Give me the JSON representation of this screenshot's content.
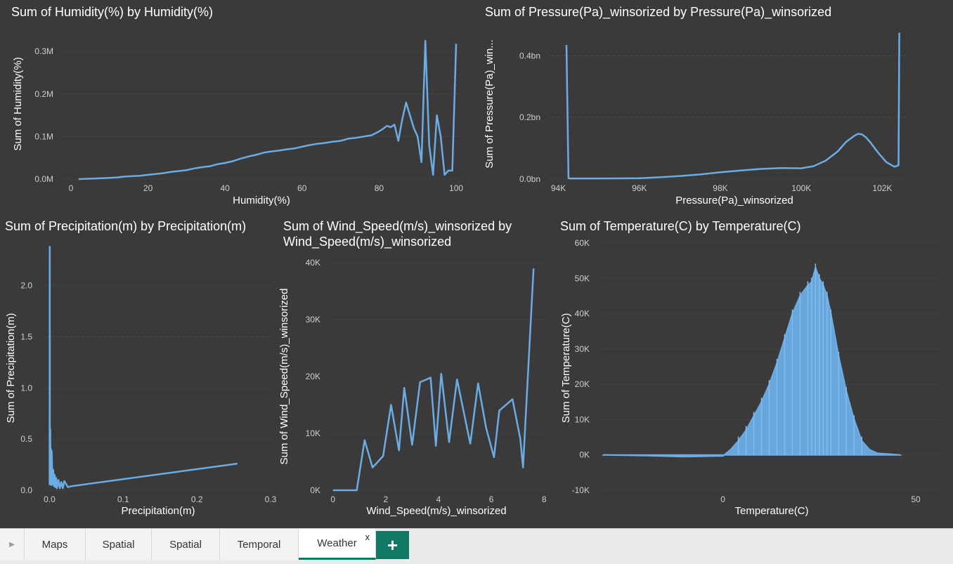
{
  "colors": {
    "background": "#3a3a3a",
    "line": "#6cace4",
    "text": "#ffffff",
    "tick": "#cfcfcf",
    "grid": "#5a5a5a",
    "tab_accent": "#117865"
  },
  "tabs": [
    {
      "label": "Maps"
    },
    {
      "label": "Spatial"
    },
    {
      "label": "Spatial"
    },
    {
      "label": "Temporal"
    },
    {
      "label": "Weather",
      "close": "x"
    }
  ],
  "add_page": "+",
  "scroll_icon": "triangle-right-icon",
  "chart_data": [
    {
      "type": "line",
      "title": "Sum of Humidity(%) by Humidity(%)",
      "xlabel": "Humidity(%)",
      "ylabel": "Sum of Humidity(%)",
      "xlim": [
        -2,
        102
      ],
      "ylim": [
        0,
        330000
      ],
      "xticks": [
        {
          "v": 0,
          "label": "0"
        },
        {
          "v": 20,
          "label": "20"
        },
        {
          "v": 40,
          "label": "40"
        },
        {
          "v": 60,
          "label": "60"
        },
        {
          "v": 80,
          "label": "80"
        },
        {
          "v": 100,
          "label": "100"
        }
      ],
      "yticks": [
        {
          "v": 0,
          "label": "0.0M"
        },
        {
          "v": 100000,
          "label": "0.1M"
        },
        {
          "v": 200000,
          "label": "0.2M"
        },
        {
          "v": 300000,
          "label": "0.3M"
        }
      ],
      "x": [
        2,
        5,
        8,
        10,
        12,
        14,
        16,
        18,
        20,
        22,
        24,
        26,
        28,
        30,
        32,
        34,
        36,
        38,
        40,
        42,
        44,
        46,
        48,
        50,
        52,
        54,
        56,
        58,
        60,
        62,
        64,
        66,
        68,
        70,
        72,
        74,
        76,
        78,
        80,
        81,
        82,
        83,
        84,
        85,
        86,
        87,
        88,
        89,
        90,
        91,
        92,
        93,
        94,
        95,
        96,
        97,
        98,
        99,
        100
      ],
      "y": [
        0,
        1000,
        2000,
        3000,
        4000,
        6000,
        7000,
        8000,
        10000,
        12000,
        14000,
        17000,
        19000,
        21000,
        25000,
        28000,
        30000,
        35000,
        38000,
        42000,
        48000,
        53000,
        57000,
        62000,
        65000,
        67000,
        70000,
        72000,
        76000,
        80000,
        83000,
        85000,
        88000,
        90000,
        95000,
        97000,
        100000,
        103000,
        112000,
        118000,
        125000,
        122000,
        128000,
        90000,
        140000,
        180000,
        150000,
        120000,
        100000,
        40000,
        325000,
        80000,
        10000,
        150000,
        100000,
        10000,
        20000,
        20000,
        318000
      ],
      "legend": "none",
      "grid": "dotted"
    },
    {
      "type": "line",
      "title": "Sum of Pressure(Pa)_winsorized by Pressure(Pa)_winsorized",
      "xlabel": "Pressure(Pa)_winsorized",
      "ylabel": "Sum of Pressure(Pa)_win...",
      "xlim": [
        93800,
        102600
      ],
      "ylim": [
        0,
        490000000
      ],
      "xticks": [
        {
          "v": 94000,
          "label": "94K"
        },
        {
          "v": 96000,
          "label": "96K"
        },
        {
          "v": 98000,
          "label": "98K"
        },
        {
          "v": 100000,
          "label": "100K"
        },
        {
          "v": 102000,
          "label": "102K"
        }
      ],
      "yticks": [
        {
          "v": 0,
          "label": "0.0bn"
        },
        {
          "v": 200000000,
          "label": "0.2bn"
        },
        {
          "v": 400000000,
          "label": "0.4bn"
        }
      ],
      "x": [
        94200,
        94250,
        94300,
        95000,
        96000,
        96500,
        97000,
        97500,
        98000,
        98500,
        99000,
        99500,
        100000,
        100300,
        100600,
        100900,
        101100,
        101300,
        101400,
        101500,
        101600,
        101700,
        101900,
        102100,
        102300,
        102400,
        102420
      ],
      "y": [
        435000000,
        3000000,
        2000000,
        2000000,
        3000000,
        6000000,
        10000000,
        15000000,
        22000000,
        28000000,
        33000000,
        36000000,
        35000000,
        42000000,
        60000000,
        90000000,
        120000000,
        140000000,
        147000000,
        145000000,
        135000000,
        120000000,
        85000000,
        55000000,
        40000000,
        45000000,
        475000000
      ],
      "legend": "none",
      "grid": "dotted"
    },
    {
      "type": "line",
      "title": "Sum of Precipitation(m) by Precipitation(m)",
      "xlabel": "Precipitation(m)",
      "ylabel": "Sum of Precipitation(m)",
      "xlim": [
        -0.01,
        0.3
      ],
      "ylim": [
        0,
        2.45
      ],
      "xticks": [
        {
          "v": 0,
          "label": "0.0"
        },
        {
          "v": 0.1,
          "label": "0.1"
        },
        {
          "v": 0.2,
          "label": "0.2"
        },
        {
          "v": 0.3,
          "label": "0.3"
        }
      ],
      "yticks": [
        {
          "v": 0,
          "label": "0.0"
        },
        {
          "v": 0.5,
          "label": "0.5"
        },
        {
          "v": 1.0,
          "label": "1.0"
        },
        {
          "v": 1.5,
          "label": "1.5"
        },
        {
          "v": 2.0,
          "label": "2.0"
        }
      ],
      "x": [
        0.0001,
        0.0003,
        0.0005,
        0.001,
        0.0015,
        0.002,
        0.0025,
        0.003,
        0.004,
        0.005,
        0.006,
        0.007,
        0.008,
        0.009,
        0.01,
        0.012,
        0.014,
        0.016,
        0.018,
        0.02,
        0.025,
        0.03,
        0.255
      ],
      "y": [
        0.05,
        2.38,
        0.3,
        0.6,
        0.1,
        0.4,
        0.05,
        0.38,
        0.06,
        0.2,
        0.04,
        0.15,
        0.03,
        0.12,
        0.02,
        0.1,
        0.02,
        0.08,
        0.02,
        0.09,
        0.03,
        0.04,
        0.26
      ],
      "legend": "none",
      "grid": "dotted"
    },
    {
      "type": "line",
      "title": "Sum of Wind_Speed(m/s)_winsorized by Wind_Speed(m/s)_winsorized",
      "xlabel": "Wind_Speed(m/s)_winsorized",
      "ylabel": "Sum of Wind_Speed(m/s)_winsorized",
      "xlim": [
        -0.1,
        8.1
      ],
      "ylim": [
        0,
        41000
      ],
      "xticks": [
        {
          "v": 0,
          "label": "0"
        },
        {
          "v": 2,
          "label": "2"
        },
        {
          "v": 4,
          "label": "4"
        },
        {
          "v": 6,
          "label": "6"
        },
        {
          "v": 8,
          "label": "8"
        }
      ],
      "yticks": [
        {
          "v": 0,
          "label": "0K"
        },
        {
          "v": 10000,
          "label": "10K"
        },
        {
          "v": 20000,
          "label": "20K"
        },
        {
          "v": 30000,
          "label": "30K"
        },
        {
          "v": 40000,
          "label": "40K"
        }
      ],
      "x": [
        0,
        0.9,
        1.2,
        1.5,
        1.9,
        2.2,
        2.5,
        2.7,
        3.0,
        3.3,
        3.7,
        3.9,
        4.1,
        4.4,
        4.7,
        5.2,
        5.5,
        5.8,
        6.1,
        6.3,
        6.8,
        7.1,
        7.2,
        7.6
      ],
      "y": [
        0,
        0,
        8800,
        4000,
        6000,
        15000,
        7000,
        18000,
        8000,
        19000,
        19800,
        7800,
        20500,
        8500,
        19500,
        8200,
        18800,
        11000,
        5800,
        14000,
        16000,
        9000,
        4000,
        39000
      ],
      "legend": "none",
      "grid": "dotted"
    },
    {
      "type": "area",
      "title": "Sum of Temperature(C) by Temperature(C)",
      "xlabel": "Temperature(C)",
      "ylabel": "Sum of Temperature(C)",
      "xlim": [
        -32,
        56
      ],
      "ylim": [
        -10000,
        60000
      ],
      "xticks": [
        {
          "v": 0,
          "label": "0"
        },
        {
          "v": 50,
          "label": "50"
        }
      ],
      "yticks": [
        {
          "v": -10000,
          "label": "-10K"
        },
        {
          "v": 0,
          "label": "0K"
        },
        {
          "v": 10000,
          "label": "10K"
        },
        {
          "v": 20000,
          "label": "20K"
        },
        {
          "v": 30000,
          "label": "30K"
        },
        {
          "v": 40000,
          "label": "40K"
        },
        {
          "v": 50000,
          "label": "50K"
        },
        {
          "v": 60000,
          "label": "60K"
        }
      ],
      "x": [
        -31,
        -20,
        -10,
        0,
        2,
        4,
        6,
        8,
        10,
        12,
        14,
        16,
        18,
        20,
        22,
        23,
        24,
        25,
        26,
        27,
        28,
        30,
        32,
        34,
        36,
        38,
        40,
        46
      ],
      "y": [
        0,
        -200,
        -500,
        -300,
        1500,
        4000,
        7000,
        11000,
        15000,
        20000,
        26000,
        33000,
        40000,
        45000,
        48000,
        49000,
        53000,
        50000,
        48000,
        45000,
        40000,
        28000,
        18000,
        10000,
        4000,
        1500,
        500,
        0
      ],
      "legend": "none",
      "grid": "dotted"
    }
  ]
}
